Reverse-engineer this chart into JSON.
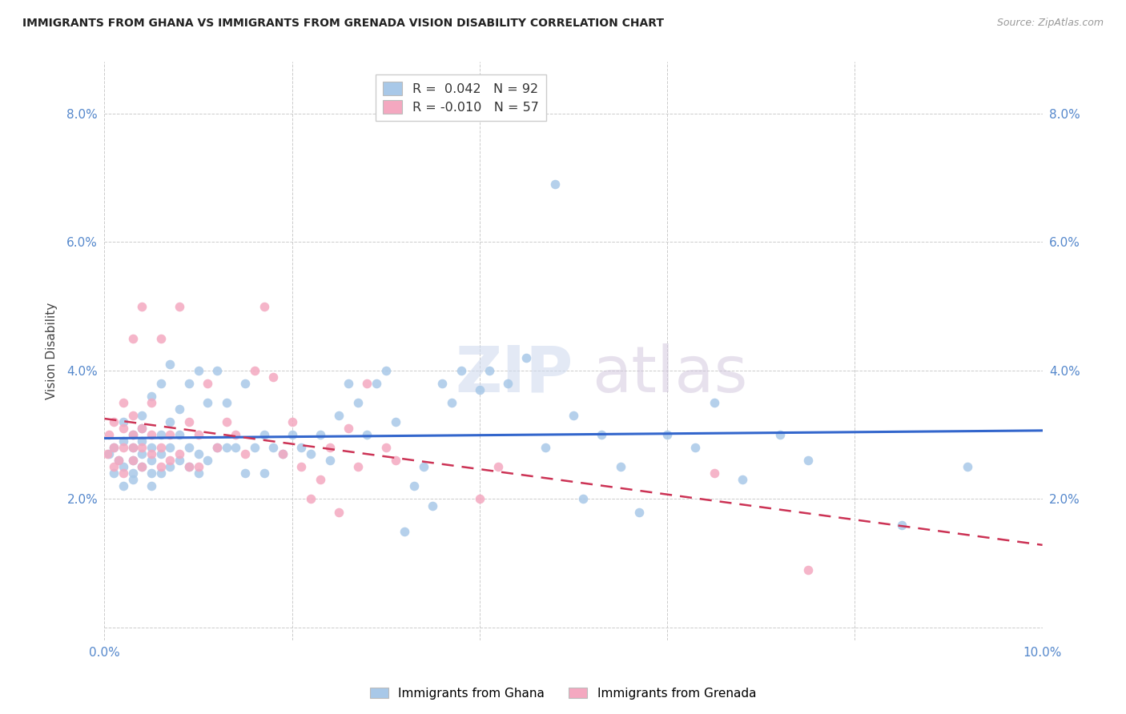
{
  "title": "IMMIGRANTS FROM GHANA VS IMMIGRANTS FROM GRENADA VISION DISABILITY CORRELATION CHART",
  "source": "Source: ZipAtlas.com",
  "ylabel": "Vision Disability",
  "xlim": [
    0.0,
    0.1
  ],
  "ylim": [
    -0.002,
    0.088
  ],
  "ghana_color": "#a8c8e8",
  "grenada_color": "#f4a8c0",
  "ghana_line_color": "#3366cc",
  "grenada_line_color": "#cc3355",
  "legend_label_ghana": "Immigrants from Ghana",
  "legend_label_grenada": "Immigrants from Grenada",
  "ghana_R": "0.042",
  "ghana_N": "92",
  "grenada_R": "-0.010",
  "grenada_N": "57",
  "ghana_x": [
    0.0005,
    0.001,
    0.001,
    0.0015,
    0.002,
    0.002,
    0.002,
    0.002,
    0.003,
    0.003,
    0.003,
    0.003,
    0.003,
    0.004,
    0.004,
    0.004,
    0.004,
    0.004,
    0.005,
    0.005,
    0.005,
    0.005,
    0.005,
    0.006,
    0.006,
    0.006,
    0.006,
    0.007,
    0.007,
    0.007,
    0.007,
    0.008,
    0.008,
    0.008,
    0.009,
    0.009,
    0.009,
    0.01,
    0.01,
    0.01,
    0.011,
    0.011,
    0.012,
    0.012,
    0.013,
    0.013,
    0.014,
    0.015,
    0.015,
    0.016,
    0.017,
    0.017,
    0.018,
    0.019,
    0.02,
    0.021,
    0.022,
    0.023,
    0.024,
    0.025,
    0.026,
    0.027,
    0.028,
    0.029,
    0.03,
    0.031,
    0.032,
    0.033,
    0.034,
    0.035,
    0.036,
    0.037,
    0.038,
    0.04,
    0.041,
    0.043,
    0.045,
    0.047,
    0.048,
    0.05,
    0.051,
    0.053,
    0.055,
    0.057,
    0.06,
    0.063,
    0.065,
    0.068,
    0.072,
    0.075,
    0.085,
    0.092
  ],
  "ghana_y": [
    0.027,
    0.024,
    0.028,
    0.026,
    0.022,
    0.025,
    0.029,
    0.032,
    0.024,
    0.026,
    0.028,
    0.03,
    0.023,
    0.025,
    0.027,
    0.029,
    0.031,
    0.033,
    0.022,
    0.024,
    0.026,
    0.028,
    0.036,
    0.024,
    0.027,
    0.03,
    0.038,
    0.025,
    0.028,
    0.032,
    0.041,
    0.026,
    0.03,
    0.034,
    0.025,
    0.028,
    0.038,
    0.024,
    0.027,
    0.04,
    0.026,
    0.035,
    0.028,
    0.04,
    0.028,
    0.035,
    0.028,
    0.024,
    0.038,
    0.028,
    0.024,
    0.03,
    0.028,
    0.027,
    0.03,
    0.028,
    0.027,
    0.03,
    0.026,
    0.033,
    0.038,
    0.035,
    0.03,
    0.038,
    0.04,
    0.032,
    0.015,
    0.022,
    0.025,
    0.019,
    0.038,
    0.035,
    0.04,
    0.037,
    0.04,
    0.038,
    0.042,
    0.028,
    0.069,
    0.033,
    0.02,
    0.03,
    0.025,
    0.018,
    0.03,
    0.028,
    0.035,
    0.023,
    0.03,
    0.026,
    0.016,
    0.025
  ],
  "grenada_x": [
    0.0003,
    0.0005,
    0.001,
    0.001,
    0.001,
    0.0015,
    0.002,
    0.002,
    0.002,
    0.002,
    0.003,
    0.003,
    0.003,
    0.003,
    0.003,
    0.004,
    0.004,
    0.004,
    0.004,
    0.005,
    0.005,
    0.005,
    0.006,
    0.006,
    0.006,
    0.007,
    0.007,
    0.008,
    0.008,
    0.009,
    0.009,
    0.01,
    0.01,
    0.011,
    0.012,
    0.013,
    0.014,
    0.015,
    0.016,
    0.017,
    0.018,
    0.019,
    0.02,
    0.021,
    0.022,
    0.023,
    0.024,
    0.025,
    0.026,
    0.027,
    0.028,
    0.03,
    0.031,
    0.04,
    0.042,
    0.065,
    0.075
  ],
  "grenada_y": [
    0.027,
    0.03,
    0.025,
    0.028,
    0.032,
    0.026,
    0.024,
    0.028,
    0.031,
    0.035,
    0.026,
    0.028,
    0.03,
    0.033,
    0.045,
    0.025,
    0.028,
    0.031,
    0.05,
    0.027,
    0.03,
    0.035,
    0.025,
    0.028,
    0.045,
    0.026,
    0.03,
    0.027,
    0.05,
    0.025,
    0.032,
    0.025,
    0.03,
    0.038,
    0.028,
    0.032,
    0.03,
    0.027,
    0.04,
    0.05,
    0.039,
    0.027,
    0.032,
    0.025,
    0.02,
    0.023,
    0.028,
    0.018,
    0.031,
    0.025,
    0.038,
    0.028,
    0.026,
    0.02,
    0.025,
    0.024,
    0.009
  ]
}
